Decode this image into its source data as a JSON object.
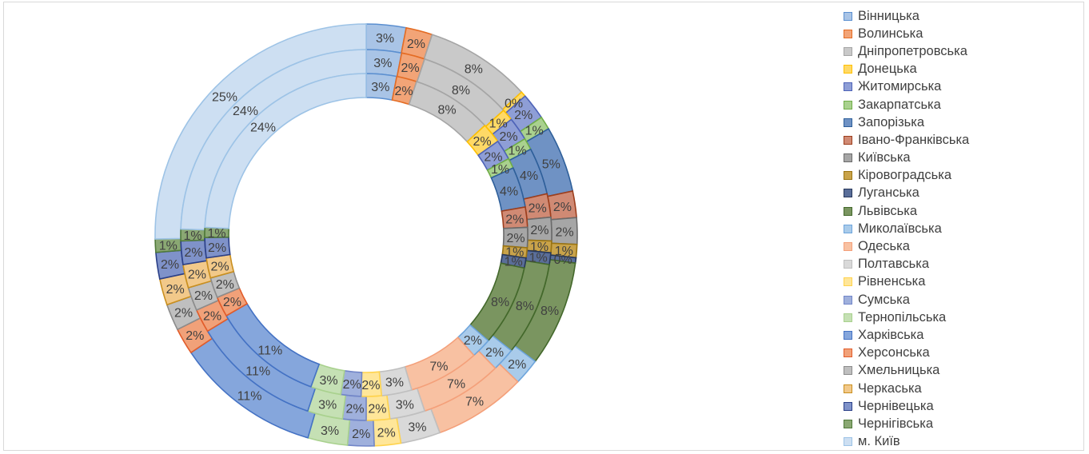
{
  "chart_data": {
    "type": "doughnut",
    "categories": [
      "Вінницька",
      "Волинська",
      "Дніпропетровська",
      "Донецька",
      "Житомирська",
      "Закарпатська",
      "Запорізька",
      "Івано-Франківська",
      "Київська",
      "Кіровоградська",
      "Луганська",
      "Львівська",
      "Миколаївська",
      "Одеська",
      "Полтавська",
      "Рівненська",
      "Сумська",
      "Тернопільська",
      "Харківська",
      "Херсонська",
      "Хмельницька",
      "Черкаська",
      "Чернівецька",
      "Чернігівська",
      "м. Київ"
    ],
    "colors": [
      "#a9c4e6",
      "#f2a477",
      "#c9c9c9",
      "#ffd966",
      "#8e9ed6",
      "#a9d18e",
      "#6f92c4",
      "#d08a74",
      "#a6a6a6",
      "#c9a34a",
      "#5a6e99",
      "#7a9560",
      "#a9cbea",
      "#f8c1a2",
      "#d9d9d9",
      "#ffe699",
      "#9fb0dc",
      "#c5e0b4",
      "#85a6dc",
      "#f1a179",
      "#bfbfbf",
      "#f2c98a",
      "#7f92c9",
      "#8aa873",
      "#cddff2"
    ],
    "borders": [
      "#5b8fd0",
      "#e46c24",
      "#a5a5a5",
      "#ffc000",
      "#4e63b8",
      "#70ad47",
      "#2e5f9a",
      "#9c3e1d",
      "#6b6b6b",
      "#9a7412",
      "#26375a",
      "#43682b",
      "#6ea5dc",
      "#f4a07a",
      "#bfbfbf",
      "#ffd34d",
      "#7286c8",
      "#a9d18e",
      "#4472c4",
      "#e25c2a",
      "#8c8c8c",
      "#c98f1f",
      "#2a3f88",
      "#507a3a",
      "#9dc3e6"
    ],
    "series": [
      {
        "values": [
          3,
          2,
          8,
          0.4,
          2,
          1,
          5,
          2,
          2,
          1,
          0.4,
          8,
          2,
          7,
          3,
          2,
          2,
          3,
          11,
          2,
          2,
          2,
          2,
          1,
          25
        ],
        "labels": [
          "3%",
          "2%",
          "8%",
          "0%",
          "2%",
          "1%",
          "5%",
          "2%",
          "2%",
          "1%",
          "0%",
          "8%",
          "2%",
          "7%",
          "3%",
          "2%",
          "2%",
          "3%",
          "11%",
          "2%",
          "2%",
          "2%",
          "2%",
          "1%",
          "25%"
        ]
      },
      {
        "values": [
          3,
          2,
          8,
          1,
          2,
          1,
          4,
          2,
          2,
          1,
          1,
          8,
          2,
          7,
          3,
          2,
          2,
          3,
          11,
          2,
          2,
          2,
          2,
          1,
          24
        ],
        "labels": [
          "3%",
          "2%",
          "8%",
          "1%",
          "2%",
          "1%",
          "4%",
          "2%",
          "2%",
          "1%",
          "1%",
          "8%",
          "2%",
          "7%",
          "3%",
          "2%",
          "2%",
          "3%",
          "11%",
          "2%",
          "2%",
          "2%",
          "2%",
          "1%",
          "24%"
        ]
      },
      {
        "values": [
          3,
          2,
          8,
          2,
          2,
          1,
          4,
          2,
          2,
          1,
          1,
          8,
          2,
          7,
          3,
          2,
          2,
          3,
          11,
          2,
          2,
          2,
          2,
          1,
          24
        ],
        "labels": [
          "3%",
          "2%",
          "8%",
          "2%",
          "2%",
          "1%",
          "4%",
          "2%",
          "2%",
          "1%",
          "1%",
          "8%",
          "2%",
          "7%",
          "3%",
          "2%",
          "2%",
          "3%",
          "11%",
          "2%",
          "2%",
          "2%",
          "2%",
          "1%",
          "24%"
        ]
      }
    ]
  }
}
